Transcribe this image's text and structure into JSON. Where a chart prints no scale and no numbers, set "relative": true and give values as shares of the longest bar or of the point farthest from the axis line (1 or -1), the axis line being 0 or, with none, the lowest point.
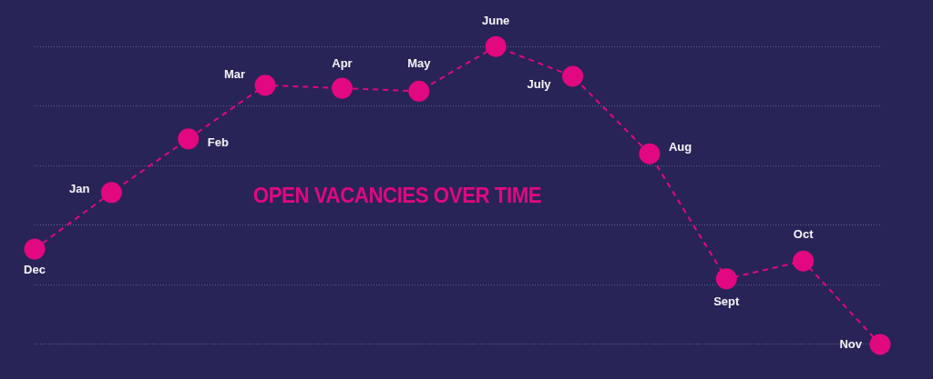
{
  "chart_data": {
    "type": "line",
    "title": "OPEN VACANCIES OVER TIME",
    "categories": [
      "Dec",
      "Jan",
      "Feb",
      "Mar",
      "Apr",
      "May",
      "June",
      "July",
      "Aug",
      "Sept",
      "Oct",
      "Nov"
    ],
    "series": [
      {
        "color": "#e2087f",
        "values": [
          0.32,
          0.51,
          0.69,
          0.87,
          0.86,
          0.85,
          1,
          0.9,
          0.64,
          0.22,
          0.28,
          0
        ]
      }
    ],
    "relative": true,
    "grid": "y",
    "marker": "circle",
    "line_style": "dashed",
    "tick_labels": false
  }
}
